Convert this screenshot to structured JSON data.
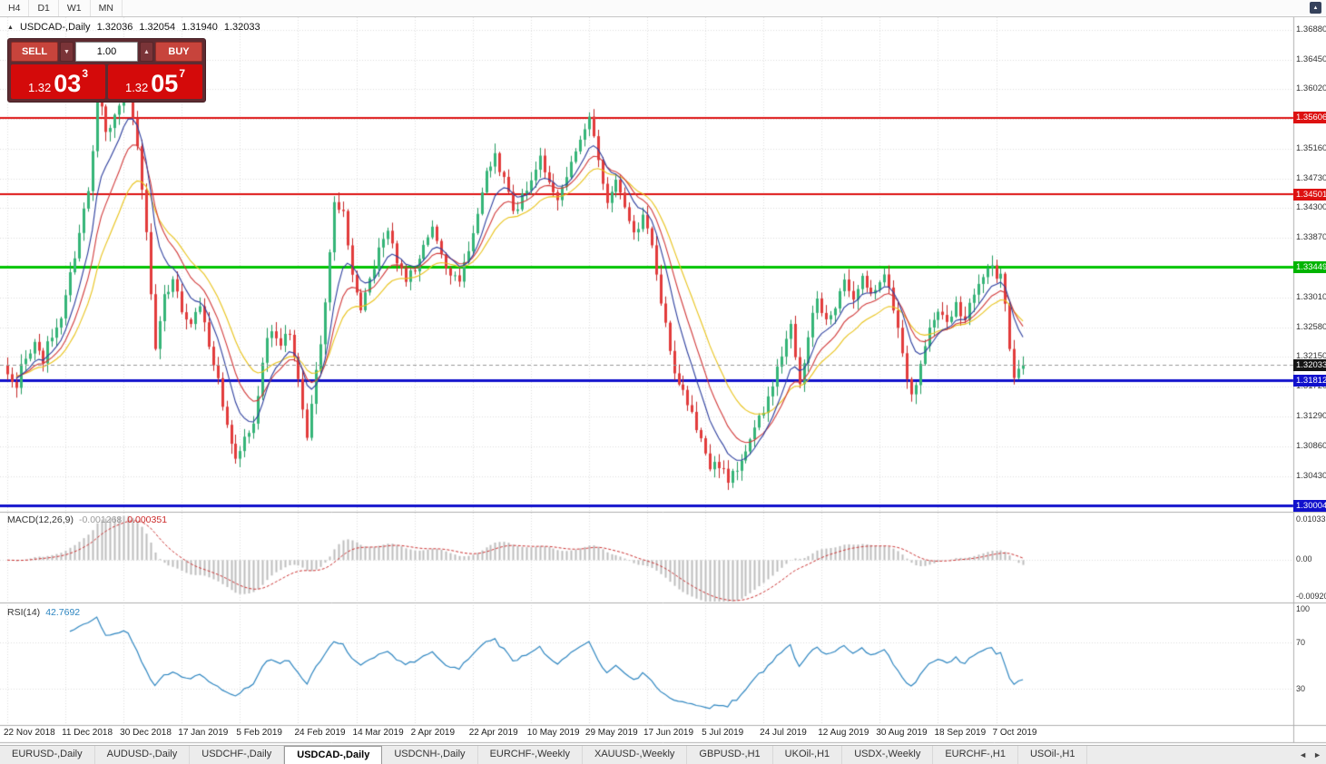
{
  "toolbar": {
    "timeframes": [
      "H4",
      "D1",
      "W1",
      "MN"
    ]
  },
  "icons": {
    "header_collapse": "▲",
    "corner_button": "▲",
    "spinner_down": "▼",
    "spinner_up": "▲"
  },
  "chart_header": {
    "symbol": "USDCAD-,Daily",
    "open": "1.32036",
    "high": "1.32054",
    "low": "1.31940",
    "close": "1.32033"
  },
  "trade_panel": {
    "sell_label": "SELL",
    "buy_label": "BUY",
    "volume": "1.00",
    "bid": {
      "prefix": "1.32",
      "big": "03",
      "sup": "3"
    },
    "ask": {
      "prefix": "1.32",
      "big": "05",
      "sup": "7"
    }
  },
  "price_axis": {
    "labels": [
      {
        "text": "1.36880",
        "price": 1.3688
      },
      {
        "text": "1.36450",
        "price": 1.3645
      },
      {
        "text": "1.36020",
        "price": 1.3602
      },
      {
        "text": "1.35160",
        "price": 1.3516
      },
      {
        "text": "1.34730",
        "price": 1.3473
      },
      {
        "text": "1.34300",
        "price": 1.343
      },
      {
        "text": "1.33870",
        "price": 1.3387
      },
      {
        "text": "1.33010",
        "price": 1.3301
      },
      {
        "text": "1.32580",
        "price": 1.3258
      },
      {
        "text": "1.32150",
        "price": 1.3215
      },
      {
        "text": "1.31720",
        "price": 1.3172
      },
      {
        "text": "1.31290",
        "price": 1.3129
      },
      {
        "text": "1.30860",
        "price": 1.3086
      },
      {
        "text": "1.30430",
        "price": 1.3043
      }
    ],
    "badges": [
      {
        "text": "1.35606",
        "price": 1.35606,
        "bg": "#dd1111"
      },
      {
        "text": "1.34501",
        "price": 1.34501,
        "bg": "#dd1111"
      },
      {
        "text": "1.33449",
        "price": 1.33449,
        "bg": "#00b400"
      },
      {
        "text": "1.32033",
        "price": 1.32033,
        "bg": "#151515"
      },
      {
        "text": "1.31812",
        "price": 1.31812,
        "bg": "#1111cc"
      },
      {
        "text": "1.30004",
        "price": 1.30004,
        "bg": "#1111cc"
      }
    ],
    "gridline_prices": [
      1.3688,
      1.3645,
      1.3602,
      1.3559,
      1.3516,
      1.3473,
      1.343,
      1.3387,
      1.3344,
      1.3301,
      1.3258,
      1.3215,
      1.3172,
      1.3129,
      1.3086,
      1.3043,
      1.3
    ]
  },
  "indicators": {
    "macd": {
      "label": "MACD(12,26,9)",
      "value_main": "-0.001268",
      "value_signal": "0.000351",
      "axis_max": "0.010331",
      "axis_zero": "0.00",
      "axis_min": "-0.009201"
    },
    "rsi": {
      "label": "RSI(14)",
      "value": "42.7692",
      "axis_top": "100",
      "level_high": "70",
      "level_low": "30"
    }
  },
  "time_axis": {
    "labels": [
      "22 Nov 2018",
      "11 Dec 2018",
      "30 Dec 2018",
      "17 Jan 2019",
      "5 Feb 2019",
      "24 Feb 2019",
      "14 Mar 2019",
      "2 Apr 2019",
      "22 Apr 2019",
      "10 May 2019",
      "29 May 2019",
      "17 Jun 2019",
      "5 Jul 2019",
      "24 Jul 2019",
      "12 Aug 2019",
      "30 Aug 2019",
      "18 Sep 2019",
      "7 Oct 2019"
    ]
  },
  "tabs": {
    "items": [
      "EURUSD-,Daily",
      "AUDUSD-,Daily",
      "USDCHF-,Daily",
      "USDCAD-,Daily",
      "USDCNH-,Daily",
      "EURCHF-,Weekly",
      "XAUUSD-,Weekly",
      "GBPUSD-,H1",
      "UKOil-,H1",
      "USDX-,Weekly",
      "EURCHF-,H1",
      "USOil-,H1"
    ],
    "active_index": 3,
    "scroll_left": "◄",
    "scroll_right": "►"
  },
  "chart_data": {
    "type": "candlestick",
    "symbol": "USDCAD",
    "timeframe": "Daily",
    "bars_total": 228,
    "bars_per_gridline": 13,
    "price_range": {
      "max": 1.3706,
      "min": 1.2994
    },
    "macd_range": {
      "max": 0.010331,
      "min": -0.009201
    },
    "current_price": 1.32033,
    "bid": 1.32033,
    "ask": 1.32057,
    "horizontal_lines": [
      {
        "price": 1.35606,
        "color": "#dd1111",
        "width": 2
      },
      {
        "price": 1.34501,
        "color": "#dd1111",
        "width": 2
      },
      {
        "price": 1.33449,
        "color": "#00c400",
        "width": 3
      },
      {
        "price": 1.31812,
        "color": "#1111cc",
        "width": 3
      },
      {
        "price": 1.30004,
        "color": "#1111cc",
        "width": 3
      }
    ],
    "moving_averages": [
      {
        "period": 21,
        "color": "#e9c319"
      },
      {
        "period": 13,
        "color": "#d23a3a"
      },
      {
        "period": 8,
        "color": "#2c3e9e"
      }
    ],
    "candle_colors": {
      "up": "#35b578",
      "up_border": "#239c61",
      "down": "#e23b3b",
      "down_border": "#c52828"
    },
    "macd_colors": {
      "histogram": "#bdbdbd",
      "signal": "#cc3333"
    },
    "rsi_color": "#2e86c1",
    "rsi_levels": [
      70,
      30
    ],
    "anchors": [
      [
        0,
        1.3195
      ],
      [
        2,
        1.3175
      ],
      [
        4,
        1.322
      ],
      [
        6,
        1.3235
      ],
      [
        8,
        1.321
      ],
      [
        10,
        1.325
      ],
      [
        12,
        1.327
      ],
      [
        14,
        1.333
      ],
      [
        16,
        1.339
      ],
      [
        18,
        1.346
      ],
      [
        19,
        1.352
      ],
      [
        20,
        1.362
      ],
      [
        21,
        1.3585
      ],
      [
        22,
        1.3535
      ],
      [
        24,
        1.356
      ],
      [
        26,
        1.361
      ],
      [
        27,
        1.3595
      ],
      [
        29,
        1.352
      ],
      [
        31,
        1.34
      ],
      [
        33,
        1.3225
      ],
      [
        35,
        1.33
      ],
      [
        37,
        1.333
      ],
      [
        39,
        1.328
      ],
      [
        41,
        1.3255
      ],
      [
        43,
        1.329
      ],
      [
        45,
        1.323
      ],
      [
        47,
        1.318
      ],
      [
        49,
        1.312
      ],
      [
        51,
        1.307
      ],
      [
        53,
        1.3095
      ],
      [
        55,
        1.3115
      ],
      [
        57,
        1.321
      ],
      [
        59,
        1.326
      ],
      [
        61,
        1.3235
      ],
      [
        63,
        1.325
      ],
      [
        65,
        1.318
      ],
      [
        67,
        1.3105
      ],
      [
        69,
        1.319
      ],
      [
        71,
        1.329
      ],
      [
        73,
        1.344
      ],
      [
        75,
        1.3425
      ],
      [
        77,
        1.333
      ],
      [
        79,
        1.329
      ],
      [
        81,
        1.333
      ],
      [
        83,
        1.337
      ],
      [
        85,
        1.34
      ],
      [
        87,
        1.3355
      ],
      [
        89,
        1.333
      ],
      [
        91,
        1.3345
      ],
      [
        93,
        1.337
      ],
      [
        95,
        1.34
      ],
      [
        97,
        1.3365
      ],
      [
        99,
        1.3335
      ],
      [
        101,
        1.333
      ],
      [
        103,
        1.336
      ],
      [
        105,
        1.3415
      ],
      [
        107,
        1.348
      ],
      [
        109,
        1.3505
      ],
      [
        111,
        1.347
      ],
      [
        113,
        1.3425
      ],
      [
        115,
        1.3445
      ],
      [
        117,
        1.3475
      ],
      [
        119,
        1.35
      ],
      [
        121,
        1.3465
      ],
      [
        123,
        1.344
      ],
      [
        125,
        1.3475
      ],
      [
        127,
        1.352
      ],
      [
        129,
        1.355
      ],
      [
        130,
        1.356
      ],
      [
        132,
        1.3495
      ],
      [
        134,
        1.3445
      ],
      [
        136,
        1.347
      ],
      [
        138,
        1.343
      ],
      [
        140,
        1.339
      ],
      [
        142,
        1.342
      ],
      [
        144,
        1.338
      ],
      [
        145,
        1.334
      ],
      [
        147,
        1.326
      ],
      [
        149,
        1.3195
      ],
      [
        151,
        1.3165
      ],
      [
        153,
        1.313
      ],
      [
        155,
        1.309
      ],
      [
        157,
        1.3052
      ],
      [
        159,
        1.3062
      ],
      [
        161,
        1.3038
      ],
      [
        163,
        1.3058
      ],
      [
        165,
        1.3085
      ],
      [
        167,
        1.311
      ],
      [
        169,
        1.3135
      ],
      [
        171,
        1.3175
      ],
      [
        173,
        1.3215
      ],
      [
        175,
        1.3255
      ],
      [
        177,
        1.318
      ],
      [
        179,
        1.3245
      ],
      [
        181,
        1.33
      ],
      [
        183,
        1.327
      ],
      [
        185,
        1.329
      ],
      [
        187,
        1.332
      ],
      [
        189,
        1.3295
      ],
      [
        191,
        1.3325
      ],
      [
        193,
        1.3308
      ],
      [
        195,
        1.332
      ],
      [
        196,
        1.334
      ],
      [
        198,
        1.329
      ],
      [
        200,
        1.3215
      ],
      [
        202,
        1.316
      ],
      [
        204,
        1.32
      ],
      [
        206,
        1.3255
      ],
      [
        208,
        1.328
      ],
      [
        210,
        1.326
      ],
      [
        212,
        1.329
      ],
      [
        214,
        1.327
      ],
      [
        216,
        1.331
      ],
      [
        218,
        1.3335
      ],
      [
        220,
        1.334
      ],
      [
        222,
        1.333
      ],
      [
        223,
        1.3285
      ],
      [
        224,
        1.3225
      ],
      [
        225,
        1.3185
      ],
      [
        226,
        1.3205
      ],
      [
        227,
        1.32033
      ]
    ]
  }
}
